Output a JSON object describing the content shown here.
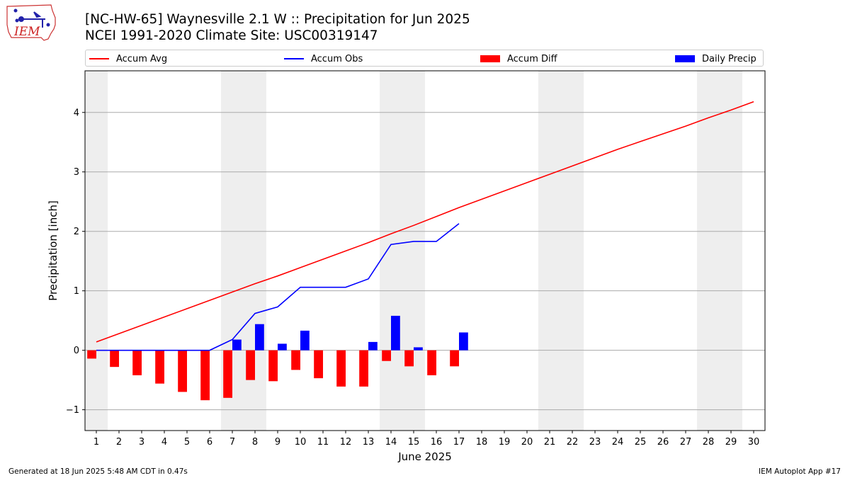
{
  "header": {
    "title_line1": "[NC-HW-65] Waynesville 2.1 W :: Precipitation for Jun 2025",
    "title_line2": "NCEI 1991-2020 Climate Site: USC00319147",
    "logo_text": "IEM"
  },
  "footer": {
    "generated": "Generated at 18 Jun 2025 5:48 AM CDT in 0.47s",
    "app": "IEM Autoplot App #17"
  },
  "colors": {
    "accum_avg": "#ff0000",
    "accum_obs": "#0000ff",
    "accum_diff": "#ff0000",
    "daily_precip": "#0000ff",
    "weekend_shade": "#eeeeee",
    "grid": "#aaaaaa"
  },
  "chart_data": {
    "type": "bar",
    "xlabel": "June 2025",
    "ylabel": "Precipitation [inch]",
    "xlim": [
      0.5,
      30.5
    ],
    "ylim": [
      -1.35,
      4.7
    ],
    "grid": true,
    "legend_position": "top",
    "x_ticks": [
      "1",
      "2",
      "3",
      "4",
      "5",
      "6",
      "7",
      "8",
      "9",
      "10",
      "11",
      "12",
      "13",
      "14",
      "15",
      "16",
      "17",
      "18",
      "19",
      "20",
      "21",
      "22",
      "23",
      "24",
      "25",
      "26",
      "27",
      "28",
      "29",
      "30"
    ],
    "y_ticks": [
      {
        "value": -1,
        "label": "−1"
      },
      {
        "value": 0,
        "label": "0"
      },
      {
        "value": 1,
        "label": "1"
      },
      {
        "value": 2,
        "label": "2"
      },
      {
        "value": 3,
        "label": "3"
      },
      {
        "value": 4,
        "label": "4"
      }
    ],
    "weekend_days": [
      1,
      7,
      8,
      14,
      15,
      21,
      22,
      28,
      29
    ],
    "series": [
      {
        "name": "Accum Avg",
        "kind": "line",
        "x": [
          1,
          2,
          3,
          4,
          5,
          6,
          7,
          8,
          9,
          10,
          11,
          12,
          13,
          14,
          15,
          16,
          17,
          18,
          19,
          20,
          21,
          22,
          23,
          24,
          25,
          26,
          27,
          28,
          29,
          30
        ],
        "values": [
          0.14,
          0.28,
          0.42,
          0.56,
          0.7,
          0.84,
          0.98,
          1.12,
          1.25,
          1.39,
          1.53,
          1.67,
          1.81,
          1.96,
          2.1,
          2.25,
          2.4,
          2.54,
          2.68,
          2.82,
          2.96,
          3.1,
          3.24,
          3.38,
          3.51,
          3.64,
          3.77,
          3.91,
          4.04,
          4.18
        ]
      },
      {
        "name": "Accum Obs",
        "kind": "line",
        "x": [
          1,
          2,
          3,
          4,
          5,
          6,
          7,
          8,
          9,
          10,
          11,
          12,
          13,
          14,
          15,
          16,
          17
        ],
        "values": [
          0,
          0,
          0,
          0,
          0,
          0,
          0.18,
          0.62,
          0.73,
          1.06,
          1.06,
          1.06,
          1.2,
          1.78,
          1.83,
          1.83,
          2.13
        ]
      },
      {
        "name": "Accum Diff",
        "kind": "bar",
        "x": [
          1,
          2,
          3,
          4,
          5,
          6,
          7,
          8,
          9,
          10,
          11,
          12,
          13,
          14,
          15,
          16,
          17
        ],
        "values": [
          -0.14,
          -0.28,
          -0.42,
          -0.56,
          -0.7,
          -0.84,
          -0.8,
          -0.5,
          -0.52,
          -0.33,
          -0.47,
          -0.61,
          -0.61,
          -0.18,
          -0.27,
          -0.42,
          -0.27
        ]
      },
      {
        "name": "Daily Precip",
        "kind": "bar",
        "x": [
          7,
          8,
          9,
          10,
          13,
          14,
          15,
          17
        ],
        "values": [
          0.18,
          0.44,
          0.11,
          0.33,
          0.14,
          0.58,
          0.05,
          0.3
        ]
      }
    ]
  }
}
